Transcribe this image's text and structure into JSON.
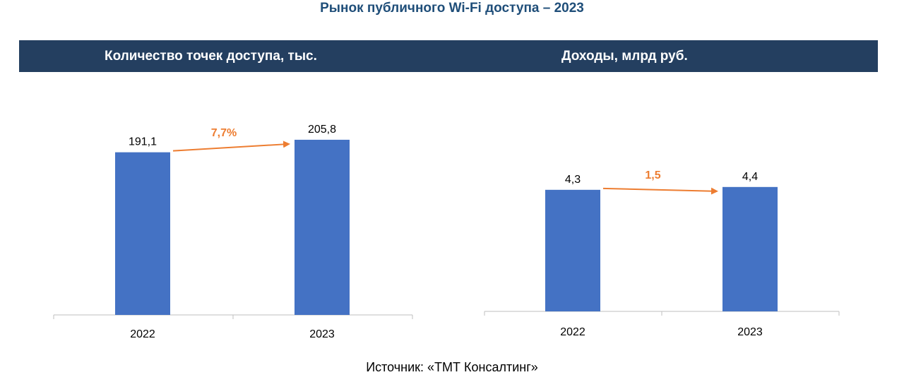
{
  "page": {
    "title": "Рынок публичного Wi-Fi доступа – 2023",
    "source": "Источник: «ТМТ Консалтинг»"
  },
  "colors": {
    "header_bg": "#243f60",
    "title_text": "#1f4e79",
    "bar": "#4472c4",
    "arrow": "#ed7d31",
    "axis": "#bfbfbf"
  },
  "chart_data": [
    {
      "type": "bar",
      "title": "Количество точек доступа, тыс.",
      "categories": [
        "2022",
        "2023"
      ],
      "values": [
        191.1,
        205.8
      ],
      "value_labels": [
        "191,1",
        "205,8"
      ],
      "growth_label": "7,7%",
      "ylim": [
        0,
        224
      ],
      "grid": false,
      "legend": "none"
    },
    {
      "type": "bar",
      "title": "Доходы, млрд руб.",
      "categories": [
        "2022",
        "2023"
      ],
      "values": [
        4.3,
        4.4
      ],
      "value_labels": [
        "4,3",
        "4,4"
      ],
      "growth_label": "1,5",
      "ylim": [
        0,
        4.87
      ],
      "grid": false,
      "legend": "none"
    }
  ]
}
